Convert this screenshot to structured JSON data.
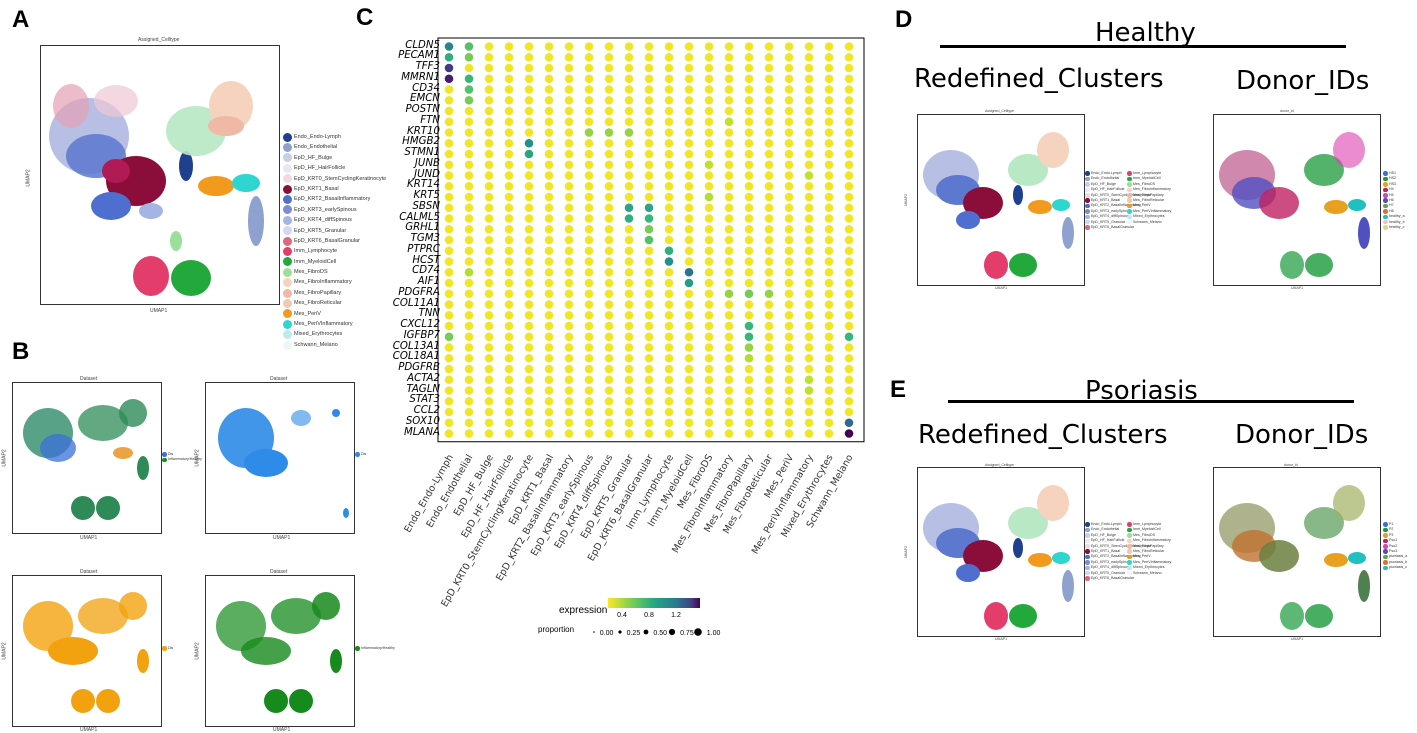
{
  "panels": {
    "A": "A",
    "B": "B",
    "C": "C",
    "D": "D",
    "E": "E"
  },
  "panelA": {
    "title": "Assigned_Celltype",
    "xlabel": "UMAP1",
    "ylabel": "UMAP2",
    "legend": [
      {
        "label": "Endo_Endo-Lymph",
        "color": "#1f3f8f"
      },
      {
        "label": "Endo_Endothelial",
        "color": "#8fa2cf"
      },
      {
        "label": "EpD_HF_Bulge",
        "color": "#c7cfe6"
      },
      {
        "label": "EpD_HF_HairFollicle",
        "color": "#ece7ef"
      },
      {
        "label": "EpD_KRT0_StemCyclingKeratinocyte",
        "color": "#f2d8e2"
      },
      {
        "label": "EpD_KRT1_Basal",
        "color": "#8b0d3a"
      },
      {
        "label": "EpD_KRT2_BasalInflammatory",
        "color": "#4f6fd0"
      },
      {
        "label": "EpD_KRT3_earlySpinous",
        "color": "#7c8dd0"
      },
      {
        "label": "EpD_KRT4_diffSpinous",
        "color": "#a4b4e4"
      },
      {
        "label": "EpD_KRT5_Granular",
        "color": "#d3d7ef"
      },
      {
        "label": "EpD_KRT6_BasalGranular",
        "color": "#e0667f"
      },
      {
        "label": "Imm_Lymphocyte",
        "color": "#e33d6b"
      },
      {
        "label": "Imm_MyeloidCell",
        "color": "#23a83c"
      },
      {
        "label": "Mes_FibroDS",
        "color": "#9bdf9b"
      },
      {
        "label": "Mes_FibroInflammatory",
        "color": "#f5d3bf"
      },
      {
        "label": "Mes_FibroPapillary",
        "color": "#efb9a5"
      },
      {
        "label": "Mes_FibroReticular",
        "color": "#eec9b4"
      },
      {
        "label": "Mes_PeriV",
        "color": "#f29a1e"
      },
      {
        "label": "Mes_PeriVInflammatory",
        "color": "#2fd6cf"
      },
      {
        "label": "Mixed_Erythrocytes",
        "color": "#bfe9ee"
      },
      {
        "label": "Schwann_Melano",
        "color": "#eef6f7"
      }
    ]
  },
  "panelB": {
    "plots": [
      {
        "title": "Dataset",
        "legend": [
          {
            "label": "Dis",
            "color": "#3b6fd8"
          },
          {
            "label": "Inflammatory/Healthy",
            "color": "#1a8a2e"
          }
        ],
        "xlabel": "UMAP1",
        "ylabel": "UMAP2"
      },
      {
        "title": "Dataset",
        "legend": [
          {
            "label": "Dis",
            "color": "#2e8be8"
          }
        ],
        "xlabel": "UMAP1",
        "ylabel": "UMAP2"
      },
      {
        "title": "Dataset",
        "legend": [
          {
            "label": "Dis",
            "color": "#f2a20f"
          }
        ],
        "xlabel": "UMAP1",
        "ylabel": "UMAP2"
      },
      {
        "title": "Dataset",
        "legend": [
          {
            "label": "Inflammatory/Healthy",
            "color": "#168a1c"
          }
        ],
        "xlabel": "UMAP1",
        "ylabel": "UMAP2"
      }
    ]
  },
  "chart_data": {
    "type": "dotplot",
    "genes": [
      "CLDN5",
      "PECAM1",
      "TFF3",
      "MMRN1",
      "CD34",
      "EMCN",
      "POSTN",
      "FTN",
      "KRT10",
      "HMGB2",
      "STMN1",
      "JUNB",
      "JUND",
      "KRT14",
      "KRT5",
      "SBSN",
      "CALML5",
      "GRHL1",
      "TGM3",
      "PTPRC",
      "HCST",
      "CD74",
      "AIF1",
      "PDGFRA",
      "COL11A1",
      "TNN",
      "CXCL12",
      "IGFBP7",
      "COL13A1",
      "COL18A1",
      "PDGFRB",
      "ACTA2",
      "TAGLN",
      "STAT3",
      "CCL2",
      "SOX10",
      "MLANA"
    ],
    "cell_types": [
      "Endo_Endo-Lymph",
      "Endo_Endothelial",
      "EpD_HF_Bulge",
      "EpD_HF_HairFollicle",
      "EpD_KRT0_StemCyclingKeratinocyte",
      "EpD_KRT1_Basal",
      "EpD_KRT2_BasalInflammatory",
      "EpD_KRT3_earlySpinous",
      "EpD_KRT4_diffSpinous",
      "EpD_KRT5_Granular",
      "EpD_KRT6_BasalGranular",
      "Imm_Lymphocyte",
      "Imm_MyeloidCell",
      "Mes_FibroDS",
      "Mes_FibroInflammatory",
      "Mes_FibroPapillary",
      "Mes_FibroReticular",
      "Mes_PeriV",
      "Mes_PeriVInflammatory",
      "Mixed_Erythrocytes",
      "Schwann_Melano"
    ],
    "highlights": [
      [
        0,
        0,
        0.95
      ],
      [
        0,
        1,
        0.65
      ],
      [
        1,
        0,
        0.75
      ],
      [
        1,
        1,
        0.6
      ],
      [
        2,
        0,
        1.3
      ],
      [
        3,
        0,
        1.4
      ],
      [
        3,
        1,
        0.7
      ],
      [
        4,
        1,
        0.65
      ],
      [
        5,
        1,
        0.6
      ],
      [
        9,
        4,
        0.9
      ],
      [
        10,
        4,
        0.8
      ],
      [
        8,
        7,
        0.55
      ],
      [
        8,
        8,
        0.55
      ],
      [
        8,
        9,
        0.55
      ],
      [
        15,
        9,
        0.8
      ],
      [
        15,
        10,
        0.8
      ],
      [
        16,
        9,
        0.75
      ],
      [
        16,
        10,
        0.7
      ],
      [
        17,
        10,
        0.6
      ],
      [
        18,
        10,
        0.65
      ],
      [
        19,
        11,
        0.75
      ],
      [
        20,
        11,
        0.9
      ],
      [
        21,
        12,
        1.05
      ],
      [
        22,
        12,
        0.85
      ],
      [
        23,
        14,
        0.55
      ],
      [
        23,
        15,
        0.6
      ],
      [
        23,
        16,
        0.55
      ],
      [
        26,
        15,
        0.7
      ],
      [
        27,
        0,
        0.6
      ],
      [
        27,
        15,
        0.7
      ],
      [
        27,
        20,
        0.7
      ],
      [
        14,
        13,
        0.5
      ],
      [
        11,
        13,
        0.45
      ],
      [
        28,
        15,
        0.55
      ],
      [
        29,
        15,
        0.5
      ],
      [
        31,
        18,
        0.45
      ],
      [
        32,
        18,
        0.45
      ],
      [
        35,
        20,
        1.1
      ],
      [
        36,
        20,
        1.5
      ],
      [
        7,
        14,
        0.45
      ],
      [
        12,
        18,
        0.45
      ],
      [
        21,
        1,
        0.5
      ]
    ],
    "legend": {
      "expression_label": "expression",
      "expression_ticks": [
        "0.4",
        "0.8",
        "1.2"
      ],
      "proportion_label": "proportion",
      "proportion_ticks": [
        "0.00",
        "0.25",
        "0.50",
        "0.75",
        "1.00"
      ]
    }
  },
  "panelD": {
    "heading": "Healthy",
    "sub_left": "Redefined_Clusters",
    "sub_right": "Donor_IDs",
    "left_plot_title": "Assigned_Celltype",
    "right_plot_title": "donor_id",
    "xlabel": "UMAP1",
    "ylabel": "UMAP2",
    "left_legend": [
      {
        "label": "Endo_Endo-Lymph",
        "color": "#1f3f8f"
      },
      {
        "label": "Endo_Endothelial",
        "color": "#8fa2cf"
      },
      {
        "label": "EpD_HF_Bulge",
        "color": "#c7cfe6"
      },
      {
        "label": "EpD_HF_HairFollicle",
        "color": "#ece7ef"
      },
      {
        "label": "EpD_KRT0_StemCyclingKeratinocyte",
        "color": "#f2d8e2"
      },
      {
        "label": "EpD_KRT1_Basal",
        "color": "#8b0d3a"
      },
      {
        "label": "EpD_KRT2_BasalInflammatory",
        "color": "#4f6fd0"
      },
      {
        "label": "EpD_KRT3_earlySpinous",
        "color": "#7c8dd0"
      },
      {
        "label": "EpD_KRT4_diffSpinous",
        "color": "#a4b4e4"
      },
      {
        "label": "EpD_KRT5_Granular",
        "color": "#d3d7ef"
      },
      {
        "label": "EpD_KRT6_BasalGranular",
        "color": "#e0667f"
      }
    ],
    "left_legend2": [
      {
        "label": "Imm_Lymphocyte",
        "color": "#e33d6b"
      },
      {
        "label": "Imm_MyeloidCell",
        "color": "#23a83c"
      },
      {
        "label": "Mes_FibroDS",
        "color": "#9bdf9b"
      },
      {
        "label": "Mes_FibroInflammatory",
        "color": "#f5d3bf"
      },
      {
        "label": "Mes_FibroPapillary",
        "color": "#efb9a5"
      },
      {
        "label": "Mes_FibroReticular",
        "color": "#eec9b4"
      },
      {
        "label": "Mes_PeriV",
        "color": "#f29a1e"
      },
      {
        "label": "Mes_PeriVInflammatory",
        "color": "#2fd6cf"
      },
      {
        "label": "Mixed_Erythrocytes",
        "color": "#bfe9ee"
      },
      {
        "label": "Schwann_Melano",
        "color": "#eef6f7"
      }
    ],
    "right_legend": [
      {
        "label": "HS1",
        "color": "#3b6fd8"
      },
      {
        "label": "HS2",
        "color": "#1a9a3a"
      },
      {
        "label": "HS3",
        "color": "#e8a020"
      },
      {
        "label": "H4",
        "color": "#c02060"
      },
      {
        "label": "H5",
        "color": "#e040b0"
      },
      {
        "label": "H6",
        "color": "#5050c0"
      },
      {
        "label": "H7",
        "color": "#60a060"
      },
      {
        "label": "H8",
        "color": "#e07030"
      },
      {
        "label": "healthy_a",
        "color": "#20c0c0"
      },
      {
        "label": "healthy_b",
        "color": "#f0c0d0"
      },
      {
        "label": "healthy_c",
        "color": "#f0d080"
      }
    ]
  },
  "panelE": {
    "heading": "Psoriasis",
    "sub_left": "Redefined_Clusters",
    "sub_right": "Donor_IDs",
    "left_plot_title": "Assigned_Celltype",
    "right_plot_title": "donor_id",
    "xlabel": "UMAP1",
    "ylabel": "UMAP2",
    "right_legend": [
      {
        "label": "P1",
        "color": "#3b6fd8"
      },
      {
        "label": "P2",
        "color": "#1a9a3a"
      },
      {
        "label": "P3",
        "color": "#e8a020"
      },
      {
        "label": "Pso1",
        "color": "#c02060"
      },
      {
        "label": "Pso2",
        "color": "#e040b0"
      },
      {
        "label": "Pso3",
        "color": "#5050c0"
      },
      {
        "label": "psoriasis_a",
        "color": "#60a060"
      },
      {
        "label": "psoriasis_b",
        "color": "#e07030"
      },
      {
        "label": "psoriasis_c",
        "color": "#20c0c0"
      }
    ]
  }
}
